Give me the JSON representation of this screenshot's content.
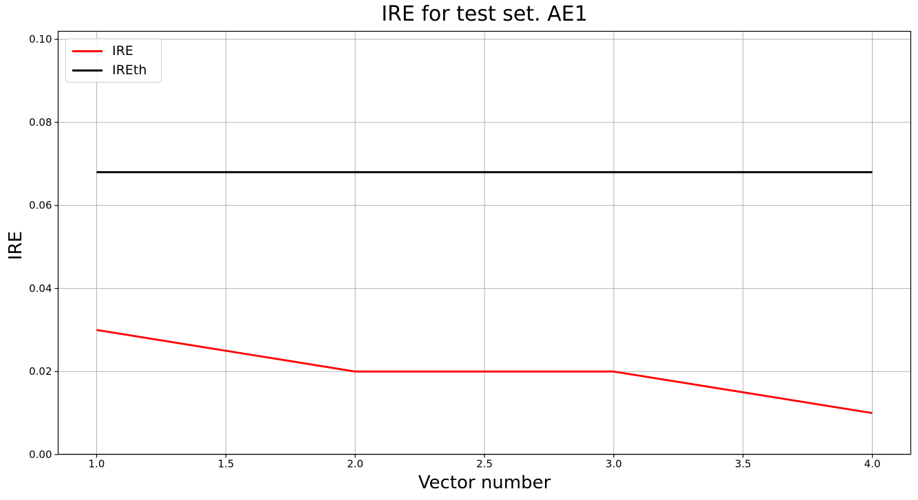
{
  "chart_data": {
    "type": "line",
    "title": "IRE for test set. AE1",
    "xlabel": "Vector number",
    "ylabel": "IRE",
    "x": [
      1,
      2,
      3,
      4
    ],
    "series": [
      {
        "name": "IRE",
        "color": "#ff0000",
        "linewidth": 2.8,
        "values": [
          0.03,
          0.02,
          0.02,
          0.01
        ]
      },
      {
        "name": "IREth",
        "color": "#000000",
        "linewidth": 2.8,
        "values": [
          0.068,
          0.068,
          0.068,
          0.068
        ]
      }
    ],
    "xlim": [
      0.85,
      4.15
    ],
    "ylim": [
      0.0,
      0.102
    ],
    "xticks": [
      1.0,
      1.5,
      2.0,
      2.5,
      3.0,
      3.5,
      4.0
    ],
    "xtick_labels": [
      "1.0",
      "1.5",
      "2.0",
      "2.5",
      "3.0",
      "3.5",
      "4.0"
    ],
    "yticks": [
      0.0,
      0.02,
      0.04,
      0.06,
      0.08,
      0.1
    ],
    "ytick_labels": [
      "0.00",
      "0.02",
      "0.04",
      "0.06",
      "0.08",
      "0.10"
    ],
    "grid": true,
    "grid_color": "#b0b0b0",
    "axis_color": "#000000",
    "tick_label_color": "#000000",
    "legend": {
      "position": "upper-left",
      "entries": [
        "IRE",
        "IREth"
      ]
    }
  }
}
